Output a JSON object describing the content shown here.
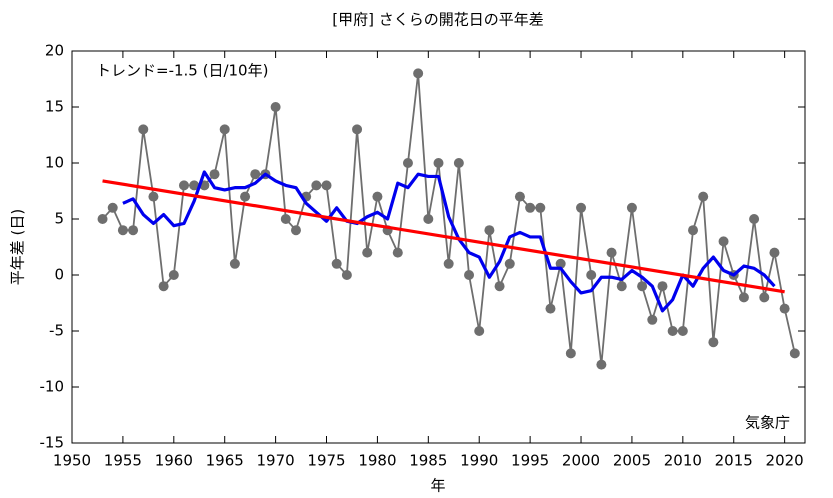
{
  "chart_data": {
    "type": "line",
    "title": "[甲府] さくらの開花日の平年差",
    "x_label": "年",
    "y_label": "平年差 (日)",
    "annotations": [
      "トレンド=-1.5 (日/10年)",
      "気象庁"
    ],
    "x": [
      1953,
      1954,
      1955,
      1956,
      1957,
      1958,
      1959,
      1960,
      1961,
      1962,
      1963,
      1964,
      1965,
      1966,
      1967,
      1968,
      1969,
      1970,
      1971,
      1972,
      1973,
      1974,
      1975,
      1976,
      1977,
      1978,
      1979,
      1980,
      1981,
      1982,
      1983,
      1984,
      1985,
      1986,
      1987,
      1988,
      1989,
      1990,
      1991,
      1992,
      1993,
      1994,
      1995,
      1996,
      1997,
      1998,
      1999,
      2000,
      2001,
      2002,
      2003,
      2004,
      2005,
      2006,
      2007,
      2008,
      2009,
      2010,
      2011,
      2012,
      2013,
      2014,
      2015,
      2016,
      2017,
      2018,
      2019,
      2020,
      2021
    ],
    "series": [
      {
        "color": "#6e6e6e",
        "markers": true,
        "values": [
          5,
          6,
          4,
          4,
          13,
          7,
          -1,
          0,
          8,
          8,
          8,
          9,
          13,
          1,
          7,
          9,
          9,
          15,
          5,
          4,
          7,
          8,
          8,
          1,
          0,
          13,
          2,
          7,
          4,
          2,
          10,
          18,
          5,
          10,
          1,
          10,
          0,
          -5,
          4,
          -1,
          1,
          7,
          6,
          6,
          -3,
          1,
          -7,
          6,
          0,
          -8,
          2,
          -1,
          6,
          -1,
          -4,
          -1,
          -5,
          -5,
          4,
          7,
          -6,
          3,
          0,
          -2,
          5,
          -2,
          2,
          -3,
          -7
        ]
      },
      {
        "color": "#0000ee",
        "markers": false,
        "values": [
          null,
          null,
          6.4,
          6.8,
          5.4,
          4.6,
          5.4,
          4.4,
          4.6,
          6.6,
          9.2,
          7.8,
          7.6,
          7.8,
          7.8,
          8.2,
          9.0,
          8.4,
          8.0,
          7.8,
          6.4,
          5.6,
          4.8,
          6.0,
          4.8,
          4.6,
          5.2,
          5.6,
          5.0,
          8.2,
          7.8,
          9.0,
          8.8,
          8.8,
          5.2,
          3.2,
          2.0,
          1.6,
          -0.2,
          1.2,
          3.4,
          3.8,
          3.4,
          3.4,
          0.6,
          0.6,
          -0.6,
          -1.6,
          -1.4,
          -0.2,
          -0.2,
          -0.4,
          0.4,
          -0.2,
          -1.0,
          -3.2,
          -2.2,
          0,
          -1.0,
          0.6,
          1.6,
          0.4,
          0,
          0.8,
          0.6,
          0,
          -1.0,
          null,
          null
        ]
      }
    ],
    "trend": {
      "color": "#ff0000",
      "x": [
        1953,
        2020
      ],
      "values": [
        8.4,
        -1.5
      ]
    },
    "xlim": [
      1950,
      2022
    ],
    "ylim": [
      -15,
      20
    ],
    "xticks": [
      1950,
      1955,
      1960,
      1965,
      1970,
      1975,
      1980,
      1985,
      1990,
      1995,
      2000,
      2005,
      2010,
      2015,
      2020
    ],
    "yticks": [
      -15,
      -10,
      -5,
      0,
      5,
      10,
      15,
      20
    ],
    "grid": false
  }
}
